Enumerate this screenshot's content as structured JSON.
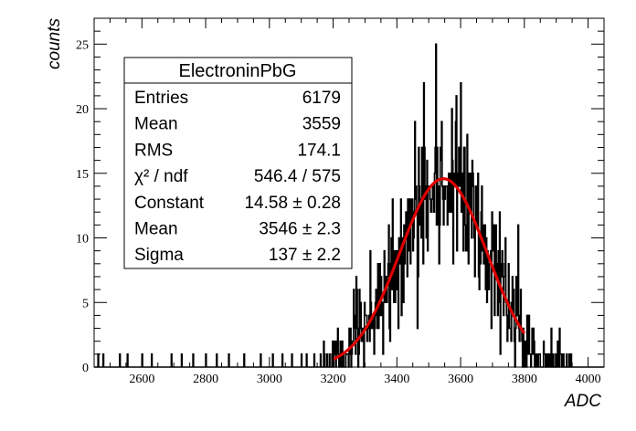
{
  "chart_data": {
    "type": "bar",
    "xlabel": "ADC",
    "ylabel": "counts",
    "xlim": [
      2450,
      4050
    ],
    "ylim": [
      0,
      27
    ],
    "x_ticks": [
      2600,
      2800,
      3000,
      3200,
      3400,
      3600,
      3800,
      4000
    ],
    "y_ticks": [
      0,
      5,
      10,
      15,
      20,
      25
    ],
    "grid": false,
    "stats_box": {
      "title": "ElectroninPbG",
      "rows": [
        {
          "label": "Entries",
          "value": "6179"
        },
        {
          "label": "Mean",
          "value": "3559"
        },
        {
          "label": "RMS",
          "value": "174.1"
        },
        {
          "label": "χ² / ndf",
          "value": "546.4 / 575"
        },
        {
          "label": "Constant",
          "value": "14.58 ± 0.28"
        },
        {
          "label": "Mean",
          "value": "3546 ± 2.3"
        },
        {
          "label": "Sigma",
          "value": "137 ± 2.2"
        }
      ]
    },
    "histogram": {
      "bin_width": 2,
      "entries": 6179,
      "shape": "gaussian",
      "constant": 14.58,
      "mean": 3546,
      "sigma": 137,
      "sparse_bins": [
        2462,
        2478,
        2530,
        2554,
        2600,
        2630,
        2692,
        2724,
        2760,
        2800,
        2834,
        2872,
        2920,
        2972,
        3010,
        3040,
        3070,
        3100,
        3124,
        3148,
        3168,
        3188
      ]
    },
    "fit": {
      "function": "gaus",
      "constant": 14.58,
      "mean": 3546,
      "sigma": 137,
      "range": [
        3200,
        3800
      ],
      "color": "#dd0000"
    }
  }
}
